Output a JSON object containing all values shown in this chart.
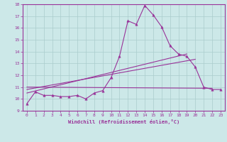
{
  "title": "",
  "xlabel": "Windchill (Refroidissement éolien,°C)",
  "xlim": [
    -0.5,
    23.5
  ],
  "ylim": [
    9,
    18
  ],
  "xticks": [
    0,
    1,
    2,
    3,
    4,
    5,
    6,
    7,
    8,
    9,
    10,
    11,
    12,
    13,
    14,
    15,
    16,
    17,
    18,
    19,
    20,
    21,
    22,
    23
  ],
  "yticks": [
    9,
    10,
    11,
    12,
    13,
    14,
    15,
    16,
    17,
    18
  ],
  "background_color": "#cce8e8",
  "grid_color": "#aacccc",
  "line_color": "#993399",
  "marker": "^",
  "line1_x": [
    0,
    1,
    2,
    3,
    4,
    5,
    6,
    7,
    8,
    9,
    10,
    11,
    12,
    13,
    14,
    15,
    16,
    17,
    18,
    19,
    20,
    21,
    22,
    23
  ],
  "line1_y": [
    9.6,
    10.6,
    10.3,
    10.3,
    10.2,
    10.2,
    10.3,
    10.0,
    10.5,
    10.7,
    11.8,
    13.6,
    16.6,
    16.3,
    17.9,
    17.1,
    16.1,
    14.5,
    13.8,
    13.6,
    12.7,
    11.0,
    10.8,
    10.8
  ],
  "line2_x": [
    0,
    19
  ],
  "line2_y": [
    10.5,
    13.8
  ],
  "line3_x": [
    0,
    20
  ],
  "line3_y": [
    10.8,
    13.35
  ],
  "line4_x": [
    0,
    22
  ],
  "line4_y": [
    11.0,
    10.9
  ]
}
